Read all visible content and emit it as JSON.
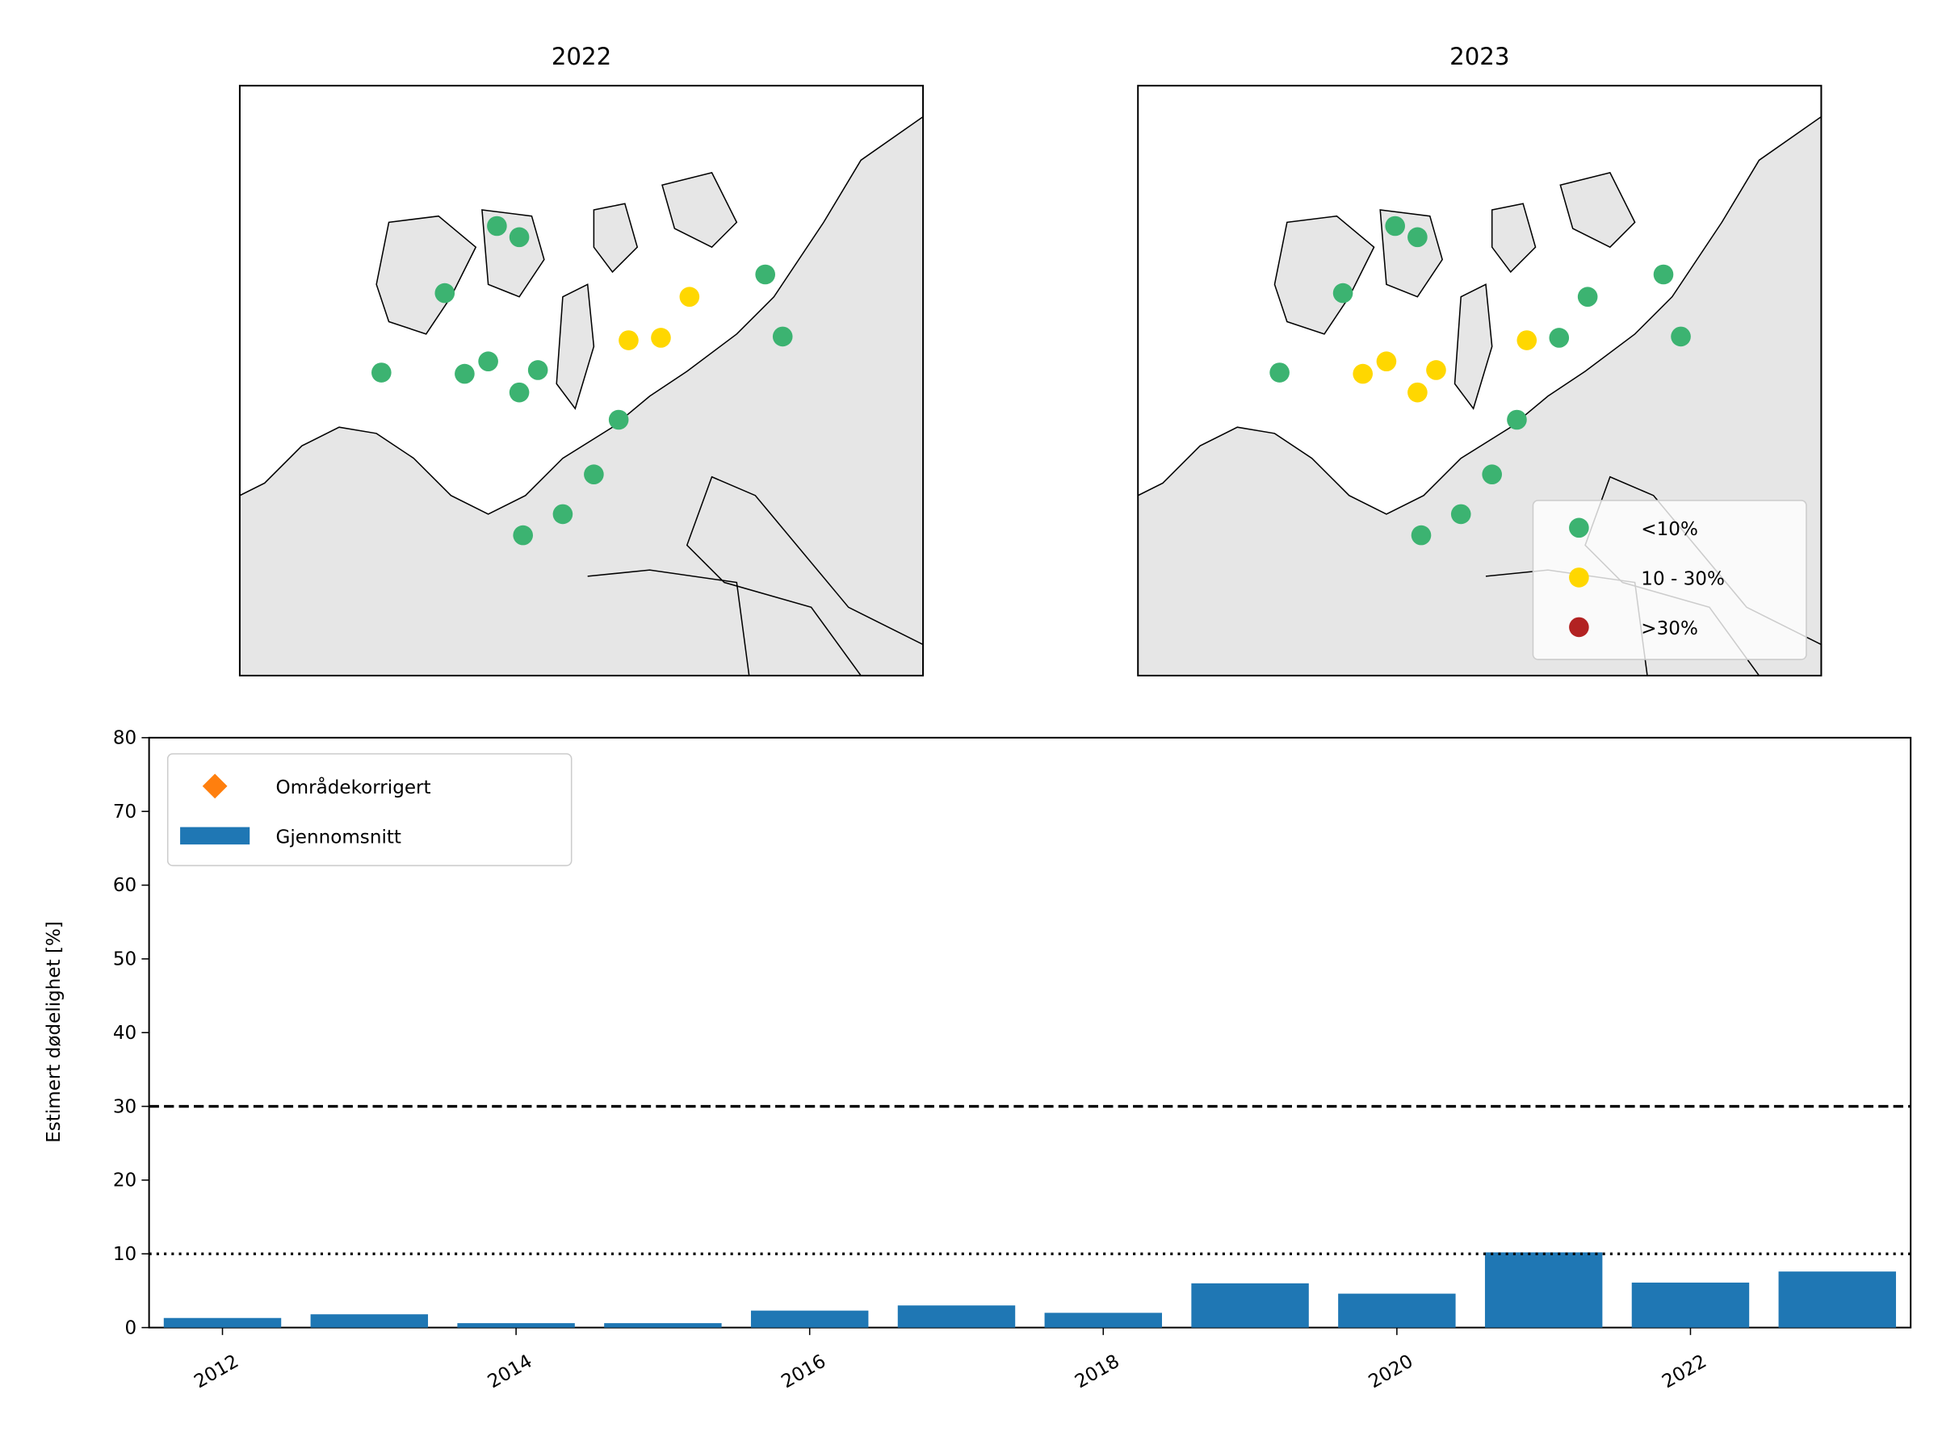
{
  "chart_data": [
    {
      "type": "map",
      "title": "2022",
      "classes": [
        "<10%",
        "10 - 30%",
        ">30%"
      ],
      "colors": [
        "#3cb371",
        "#ffd700",
        "#b22222"
      ],
      "points": [
        0,
        0,
        0,
        0,
        0,
        0,
        0,
        0,
        1,
        1,
        1,
        0,
        0,
        0,
        0,
        0,
        0
      ]
    },
    {
      "type": "map",
      "title": "2023",
      "classes": [
        "<10%",
        "10 - 30%",
        ">30%"
      ],
      "colors": [
        "#3cb371",
        "#ffd700",
        "#b22222"
      ],
      "points": [
        0,
        0,
        0,
        0,
        1,
        1,
        1,
        1,
        1,
        0,
        0,
        0,
        0,
        0,
        0,
        0,
        0
      ],
      "legend": "lower right"
    },
    {
      "type": "bar",
      "ylabel": "Estimert dødelighet [%]",
      "x": [
        2012,
        2013,
        2014,
        2015,
        2016,
        2017,
        2018,
        2019,
        2020,
        2021,
        2022,
        2023
      ],
      "series": [
        {
          "name": "Områdekorrigert",
          "color": "#ff7f0e",
          "marker": "diamond",
          "values": [
            null,
            null,
            null,
            null,
            null,
            null,
            null,
            null,
            null,
            null,
            null,
            null
          ]
        },
        {
          "name": "Gjennomsnitt",
          "color": "#1f77b4",
          "values": [
            1.3,
            1.8,
            0.6,
            0.6,
            2.3,
            3.0,
            2.0,
            6.0,
            4.6,
            10.2,
            6.1,
            7.6
          ]
        }
      ],
      "xlim": [
        2011.5,
        2023.5
      ],
      "xticks": [
        2012,
        2014,
        2016,
        2018,
        2020,
        2022
      ],
      "ylim": [
        0,
        80
      ],
      "yticks": [
        0,
        10,
        20,
        30,
        40,
        50,
        60,
        70,
        80
      ],
      "hlines": [
        {
          "value": 30,
          "style": "dashed"
        },
        {
          "value": 10,
          "style": "dotted"
        }
      ],
      "legend": "upper left"
    }
  ]
}
